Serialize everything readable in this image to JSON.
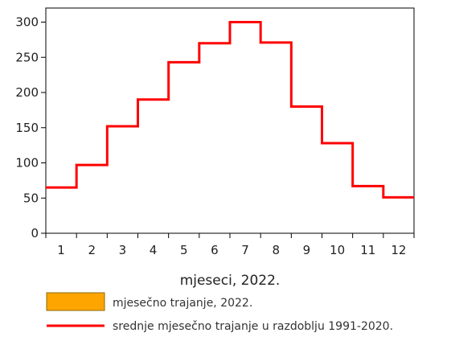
{
  "chart_data": {
    "type": "bar",
    "categories": [
      "1",
      "2",
      "3",
      "4",
      "5",
      "6",
      "7",
      "8",
      "9",
      "10",
      "11",
      "12"
    ],
    "series": [
      {
        "name": "mjesečno trajanje, 2022.",
        "kind": "bar",
        "color": "#FFA500",
        "values": [
          null,
          null,
          null,
          null,
          null,
          null,
          null,
          null,
          null,
          null,
          null,
          null
        ]
      },
      {
        "name": "srednje mjesečno trajanje u razdoblju 1991-2020.",
        "kind": "step-line",
        "color": "#FF0000",
        "values": [
          65,
          97,
          152,
          190,
          243,
          270,
          300,
          271,
          180,
          128,
          67,
          51
        ]
      }
    ],
    "xlabel": "mjeseci, 2022.",
    "ylabel": "",
    "ylim": [
      0,
      320
    ],
    "yticks": [
      0,
      50,
      100,
      150,
      200,
      250,
      300
    ],
    "grid": false,
    "legend_position": "bottom-left"
  }
}
